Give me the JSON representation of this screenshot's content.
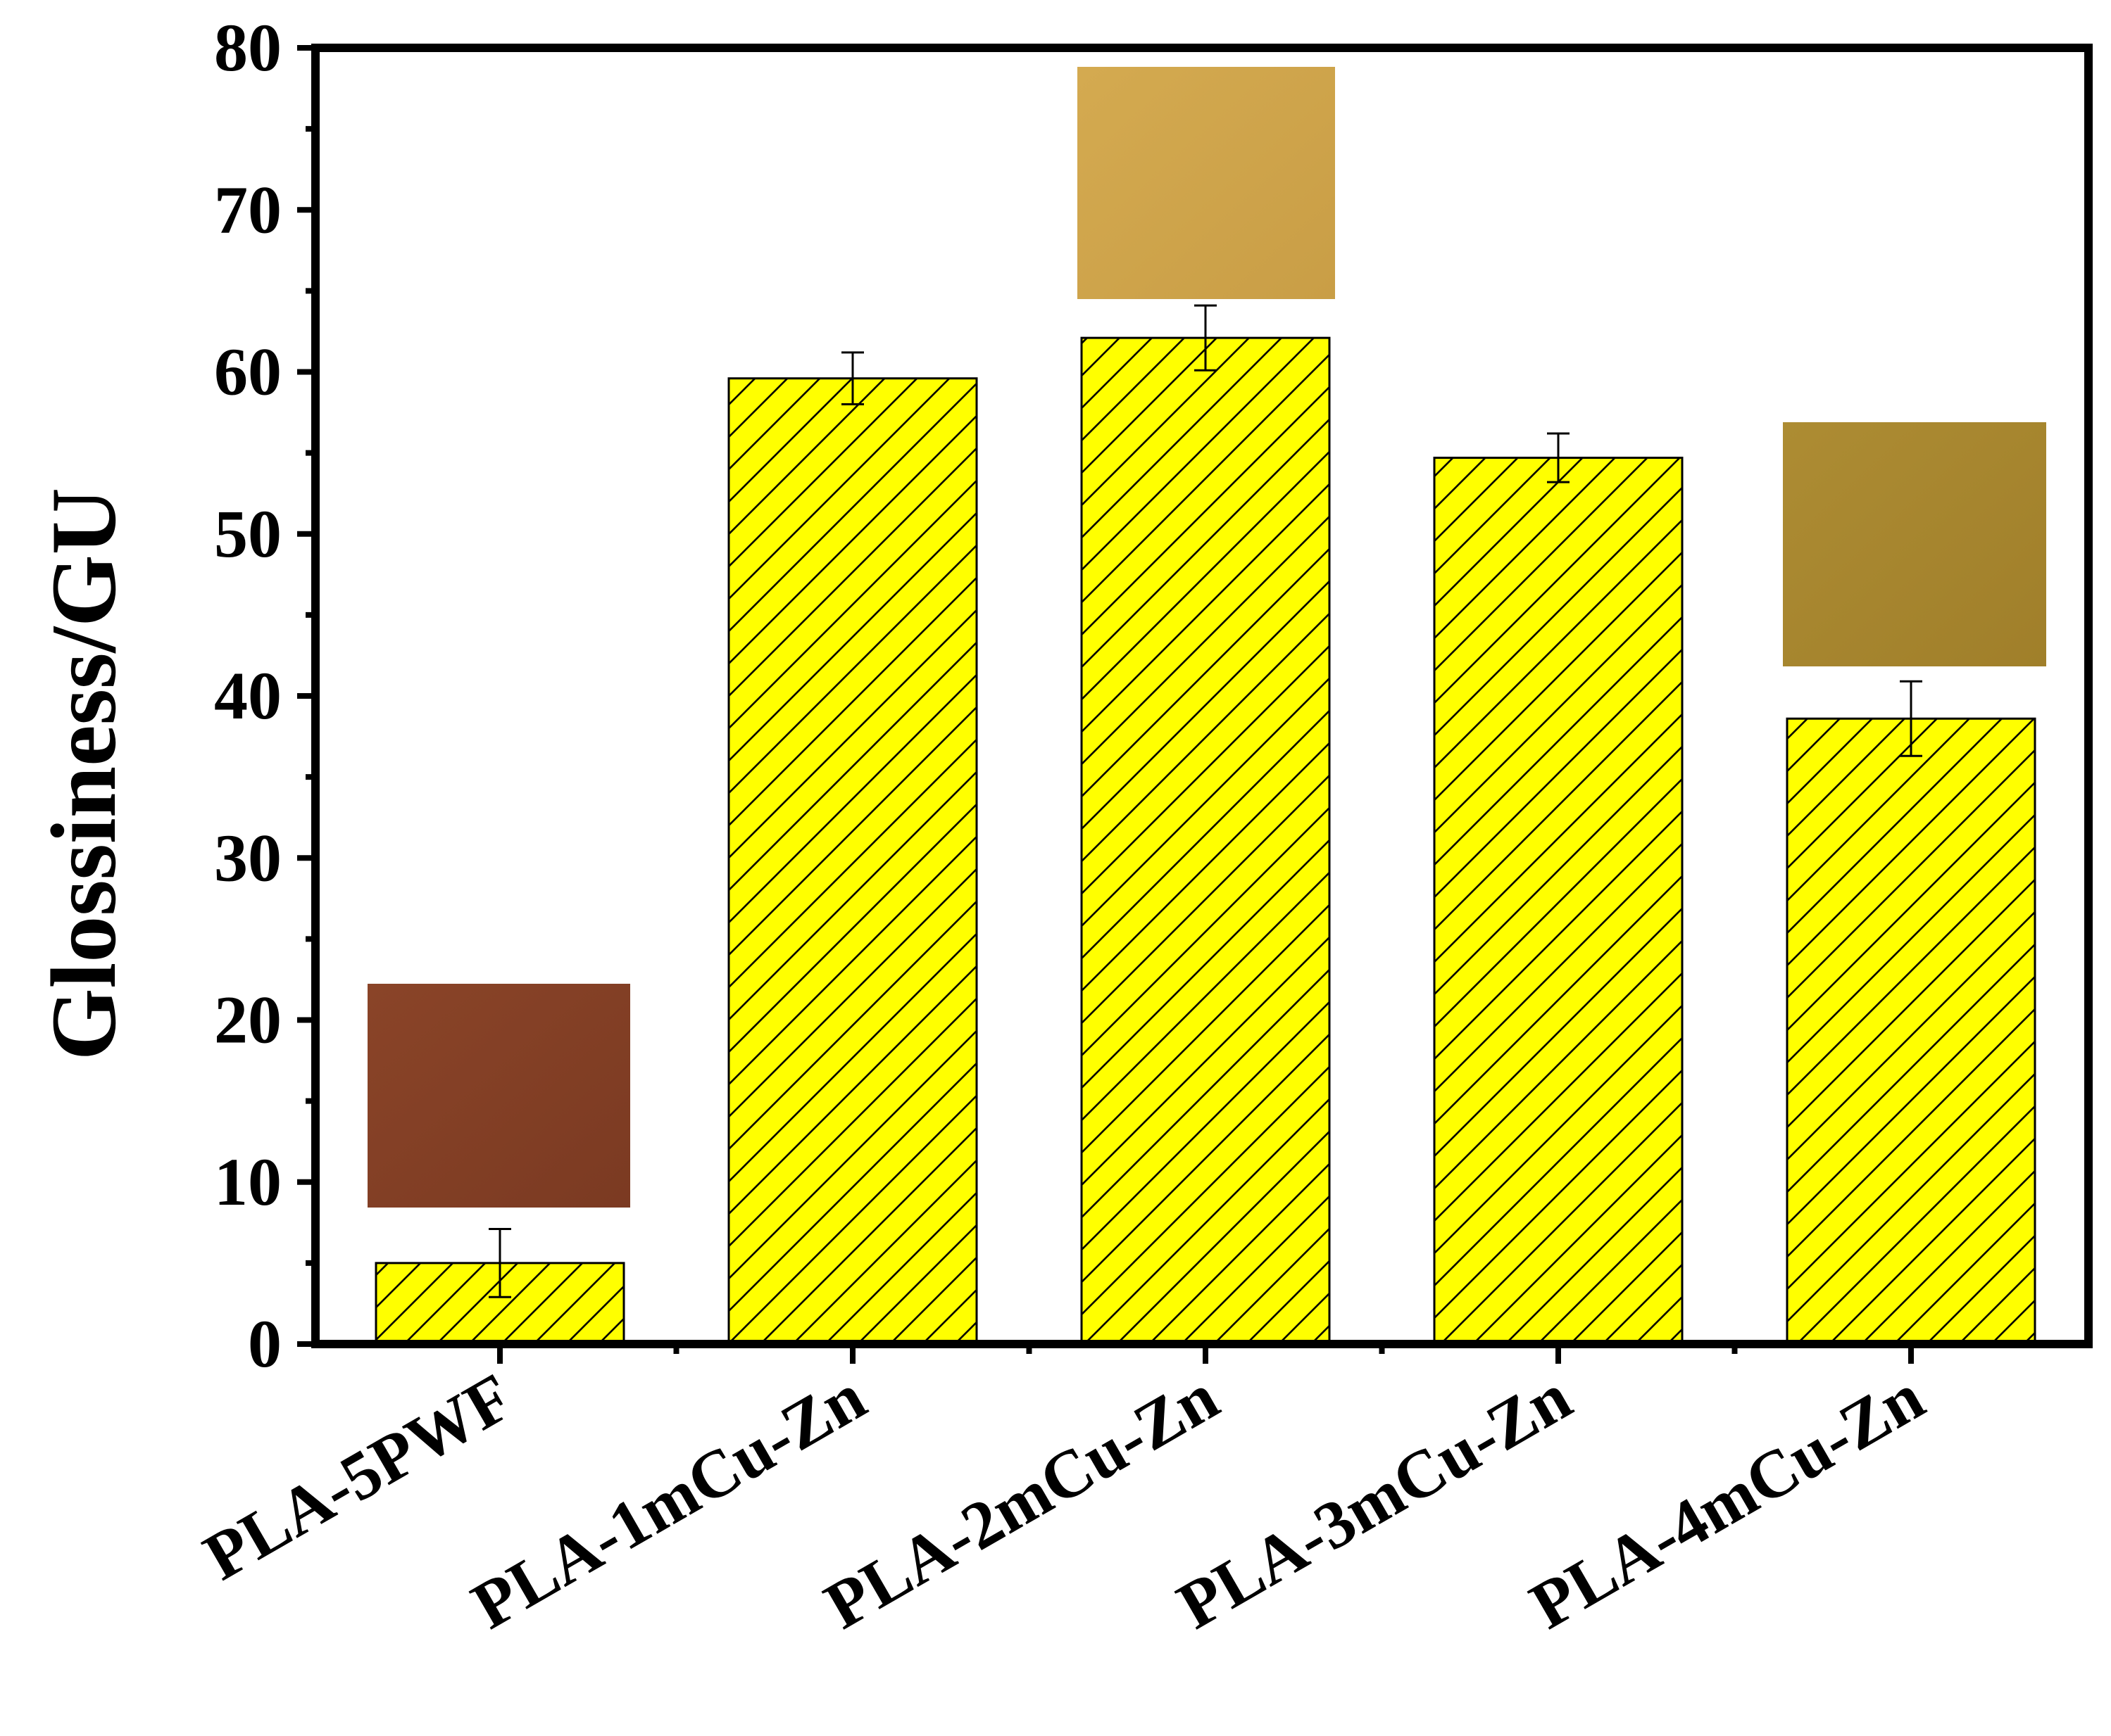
{
  "chart_data": {
    "type": "bar",
    "title": "",
    "xlabel": "",
    "ylabel": "Glossiness/GU",
    "ylim": [
      0,
      80
    ],
    "yticks": [
      "0",
      "10",
      "20",
      "30",
      "40",
      "50",
      "60",
      "70",
      "80"
    ],
    "ytick_values": [
      0,
      10,
      20,
      30,
      40,
      50,
      60,
      70,
      80
    ],
    "categories": [
      "PLA-5PWF",
      "PLA-1mCu-Zn",
      "PLA-2mCu-Zn",
      "PLA-3mCu-Zn",
      "PLA-4mCu-Zn"
    ],
    "values": [
      5.0,
      59.6,
      62.1,
      54.7,
      38.6
    ],
    "errors": [
      2.1,
      1.6,
      2.0,
      1.5,
      2.3
    ],
    "bar_fill": "#ffff00",
    "bar_hatch": "#000000",
    "grid": false,
    "legend": "none",
    "insets": [
      {
        "name": "sample-swatch-pla-5pwf",
        "category": "PLA-5PWF",
        "color": "#7b3a22",
        "color_light": "#8a4428"
      },
      {
        "name": "sample-swatch-pla-2mcu-zn",
        "category": "PLA-2mCu-Zn",
        "color": "#c99e46",
        "color_light": "#d4aa50"
      },
      {
        "name": "sample-swatch-pla-4mcu-zn",
        "category": "PLA-4mCu-Zn",
        "color": "#a07f2a",
        "color_light": "#ad8c33"
      }
    ]
  }
}
